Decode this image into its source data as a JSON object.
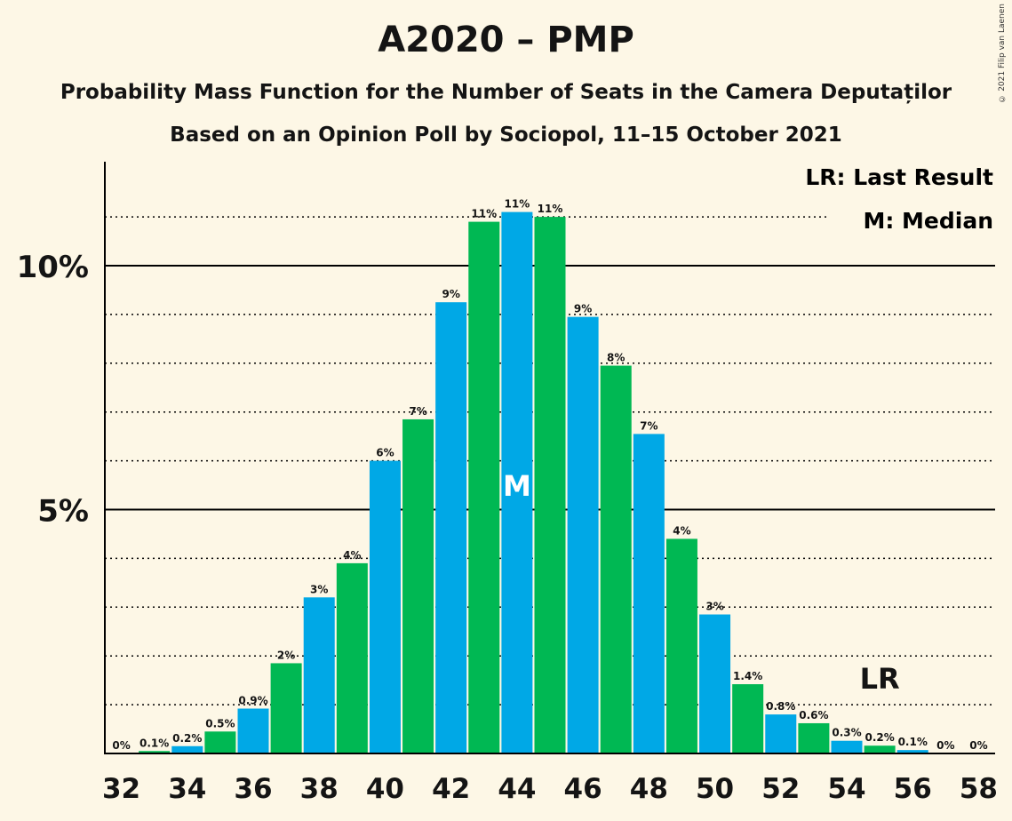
{
  "title": "A2020 – PMP",
  "subtitle": "Probability Mass Function for the Number of Seats in the Camera Deputaților",
  "subtitle2": "Based on an Opinion Poll by Sociopol, 11–15 October 2021",
  "copyright": "© 2021 Filip van Laenen",
  "legend": {
    "lr": "LR: Last Result",
    "m": "M: Median"
  },
  "markers": {
    "median_label": "M",
    "median_seat": 44,
    "last_result_label": "LR",
    "last_result_seat": 55
  },
  "colors": {
    "blue": "#00a8e6",
    "green": "#00b853",
    "background": "#fdf7e6"
  },
  "chart_data": {
    "type": "bar",
    "x": [
      32,
      33,
      34,
      35,
      36,
      37,
      38,
      39,
      40,
      41,
      42,
      43,
      44,
      45,
      46,
      47,
      48,
      49,
      50,
      51,
      52,
      53,
      54,
      55,
      56,
      57,
      58
    ],
    "values": [
      0,
      0.05,
      0.15,
      0.45,
      0.92,
      1.85,
      3.2,
      3.9,
      6.0,
      6.85,
      9.25,
      10.9,
      11.1,
      11.0,
      8.95,
      7.95,
      6.55,
      4.4,
      2.85,
      1.42,
      0.8,
      0.62,
      0.26,
      0.16,
      0.07,
      0,
      0
    ],
    "labels": [
      "0%",
      "0.1%",
      "0.2%",
      "0.5%",
      "0.9%",
      "2%",
      "3%",
      "4%",
      "6%",
      "7%",
      "9%",
      "11%",
      "11%",
      "11%",
      "9%",
      "8%",
      "7%",
      "4%",
      "3%",
      "1.4%",
      "0.8%",
      "0.6%",
      "0.3%",
      "0.2%",
      "0.1%",
      "0%",
      "0%"
    ],
    "x_tick_labels": [
      "32",
      "34",
      "36",
      "38",
      "40",
      "42",
      "44",
      "46",
      "48",
      "50",
      "52",
      "54",
      "56",
      "58"
    ],
    "y_tick_labels": [
      "5%",
      "10%"
    ],
    "ylim": [
      0,
      12
    ],
    "grid": "dotted every 1%, solid at 5% and 10%"
  }
}
